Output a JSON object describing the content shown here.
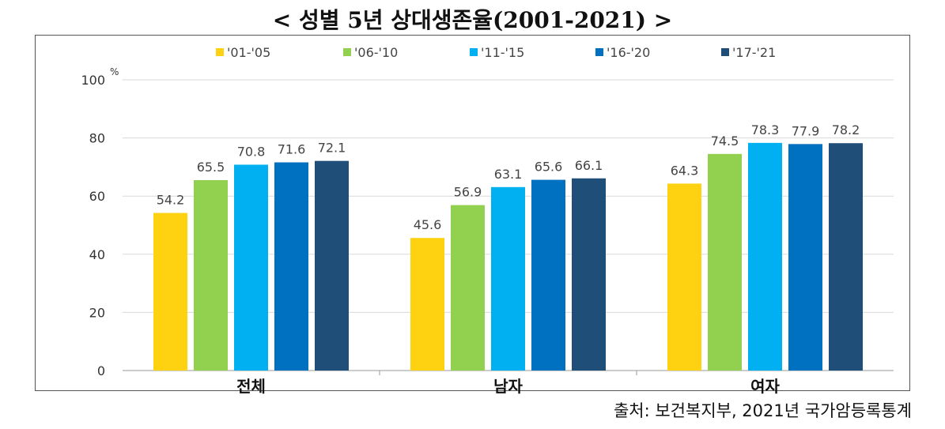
{
  "title": "< 성별 5년 상대생존율(2001-2021) >",
  "source": "출처: 보건복지부, 2021년 국가암등록통계",
  "chart_data": {
    "type": "bar",
    "categories": [
      "전체",
      "남자",
      "여자"
    ],
    "series": [
      {
        "name": "'01-'05",
        "color": "#FFD211",
        "values": [
          54.2,
          45.6,
          64.3
        ]
      },
      {
        "name": "'06-'10",
        "color": "#92D050",
        "values": [
          65.5,
          56.9,
          74.5
        ]
      },
      {
        "name": "'11-'15",
        "color": "#00B0F0",
        "values": [
          70.8,
          63.1,
          78.3
        ]
      },
      {
        "name": "'16-'20",
        "color": "#0070C0",
        "values": [
          71.6,
          65.6,
          77.9
        ]
      },
      {
        "name": "'17-'21",
        "color": "#1F4E79",
        "values": [
          72.1,
          66.1,
          78.2
        ]
      }
    ],
    "ylim": [
      0,
      100
    ],
    "yticks": [
      0,
      20,
      40,
      60,
      80,
      100
    ],
    "yunit": "%",
    "legend_position": "top",
    "grid": true
  }
}
